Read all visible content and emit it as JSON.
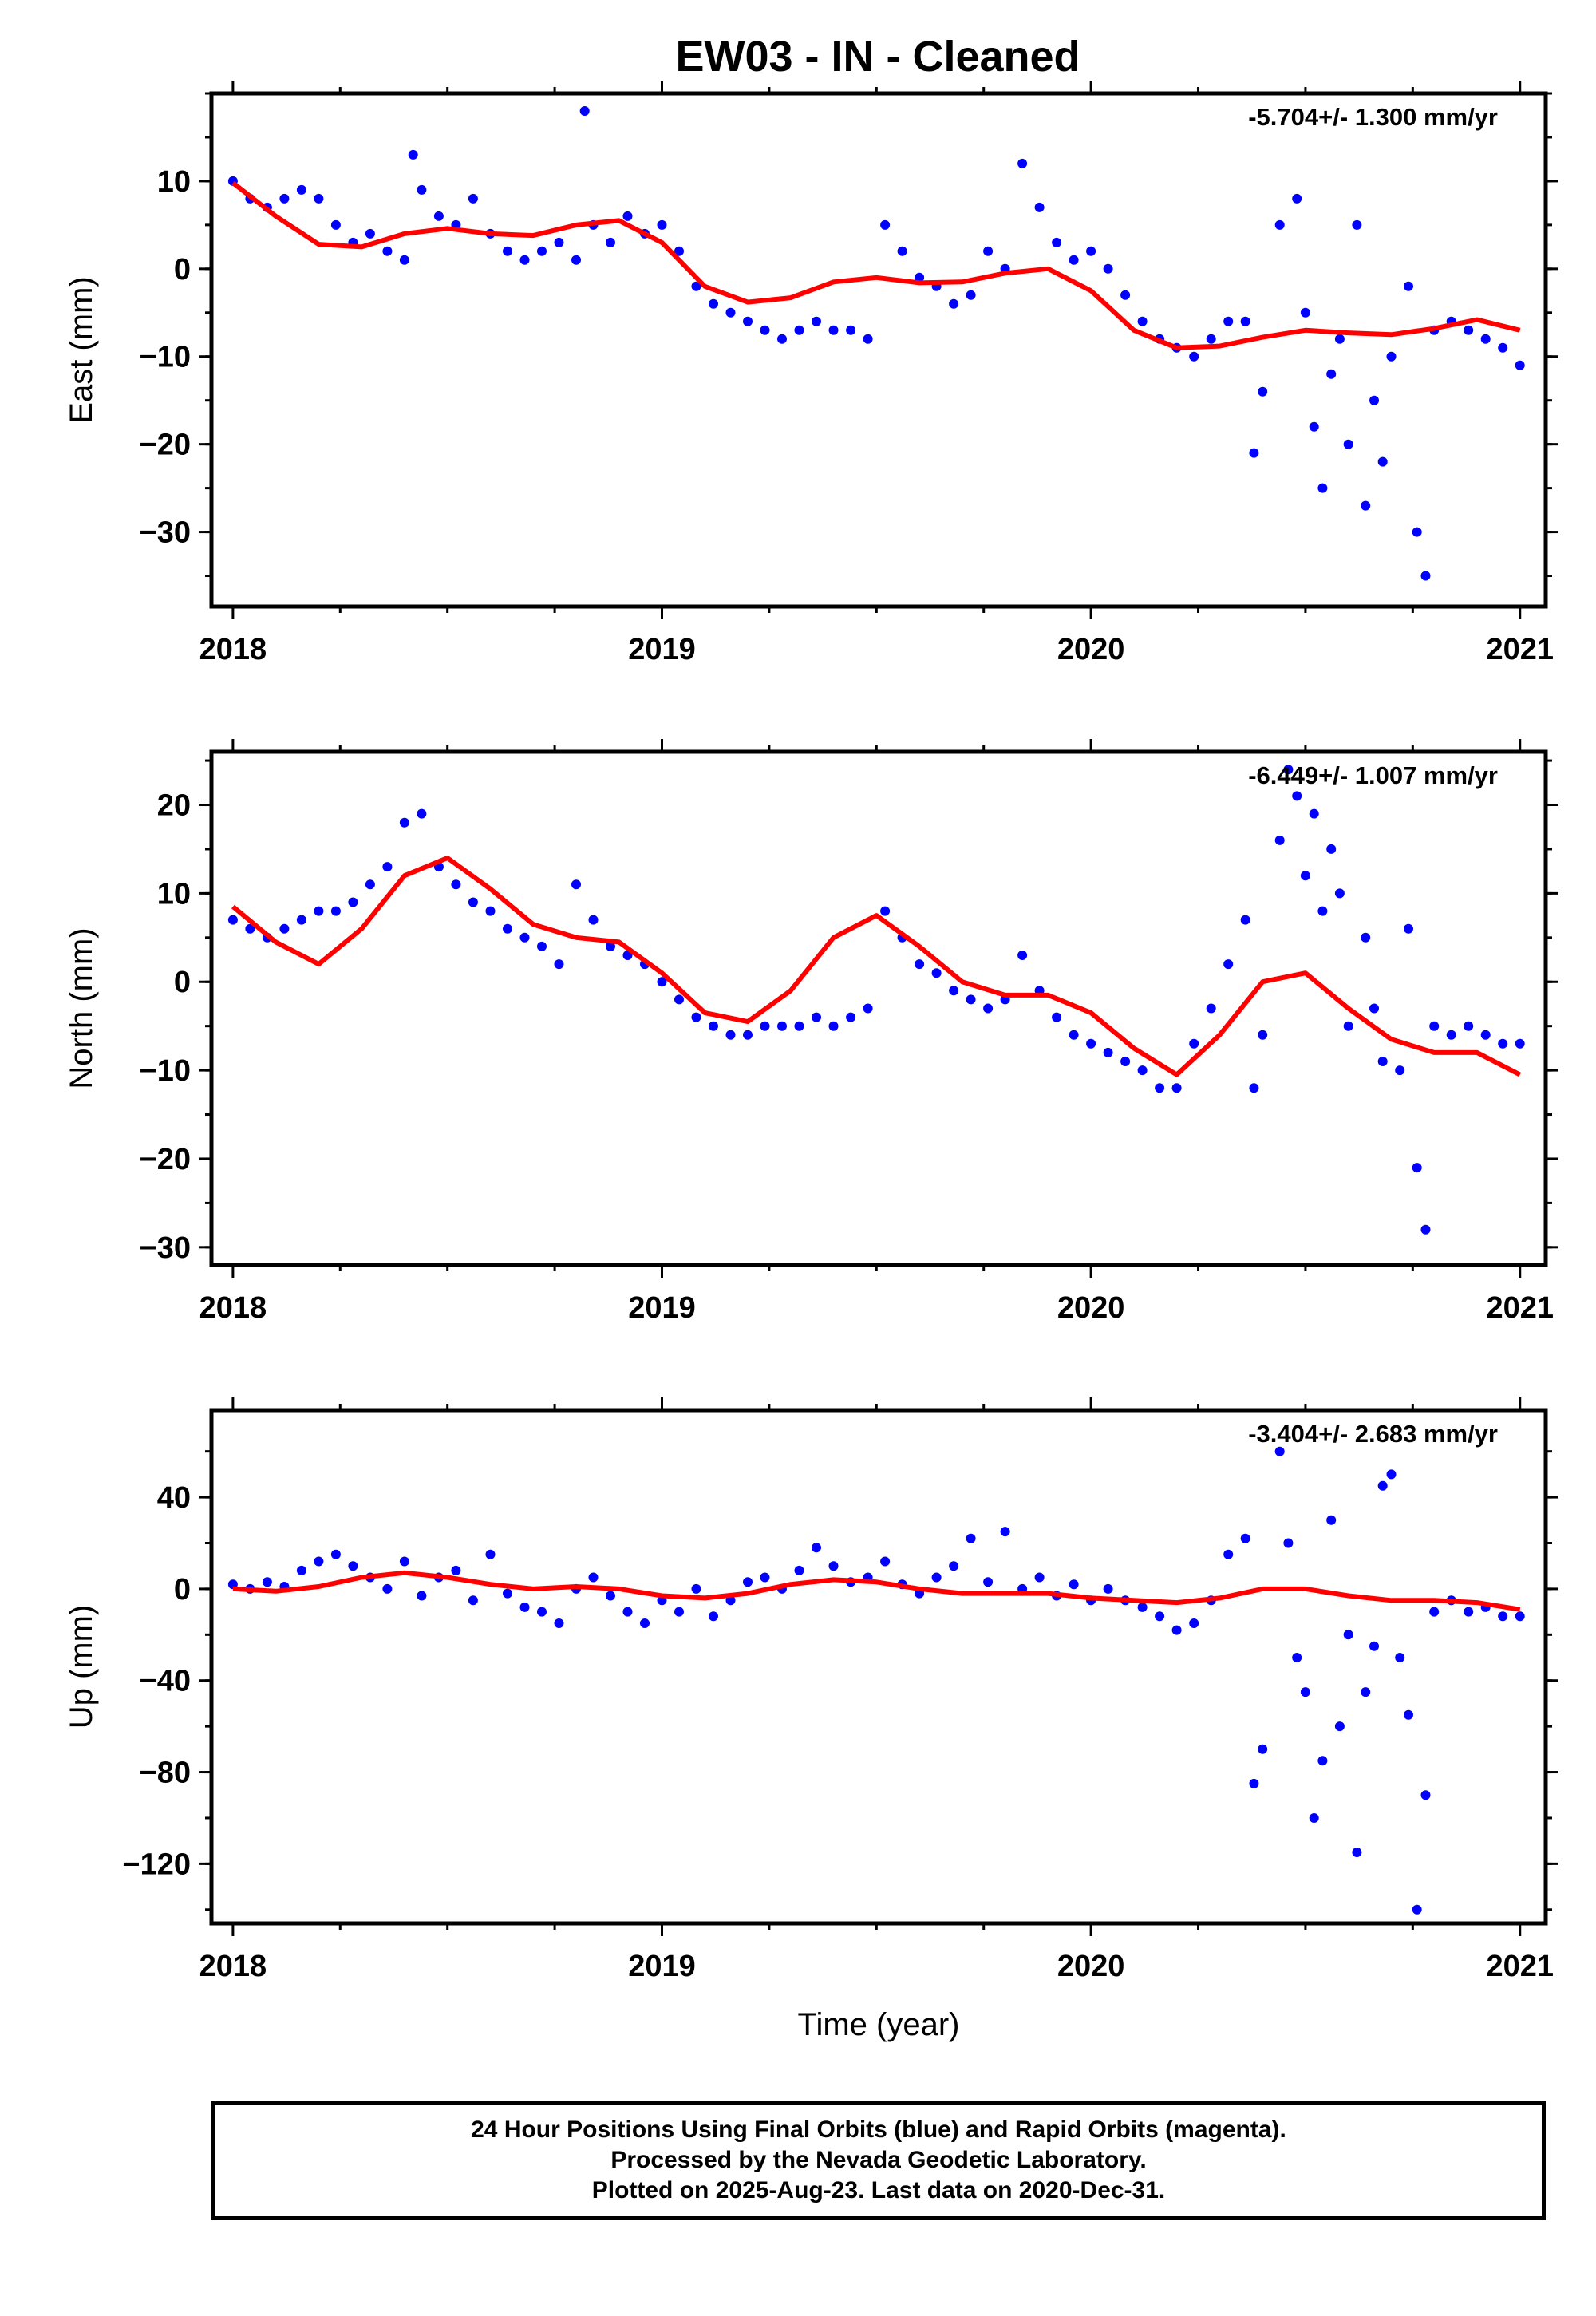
{
  "page": {
    "title": "EW03  - IN - Cleaned",
    "footer_lines": [
      "24 Hour Positions Using Final Orbits (blue) and Rapid Orbits (magenta).",
      "Processed by the Nevada Geodetic Laboratory.",
      "Plotted on 2025-Aug-23. Last data on 2020-Dec-31."
    ]
  },
  "colors": {
    "data_points": "#0000ff",
    "model_curve": "#ff0000",
    "frame": "#000000"
  },
  "chart_data": [
    {
      "type": "scatter",
      "panel": "east",
      "ylabel": "East (mm)",
      "xlabel": "",
      "rate_annotation": "-5.704+/- 1.300 mm/yr",
      "xlim": [
        2017.95,
        2021.06
      ],
      "ylim": [
        -38.5,
        20
      ],
      "xticks": [
        2018,
        2019,
        2020,
        2021
      ],
      "xtick_labels": [
        "2018",
        "2019",
        "2020",
        "2021"
      ],
      "yticks": [
        -30,
        -20,
        -10,
        0,
        10
      ],
      "ytick_labels": [
        "−30",
        "−20",
        "−10",
        "0",
        "10"
      ],
      "model_curve": {
        "name": "",
        "x": [
          2018.0,
          2018.1,
          2018.2,
          2018.3,
          2018.4,
          2018.5,
          2018.6,
          2018.7,
          2018.8,
          2018.9,
          2019.0,
          2019.1,
          2019.2,
          2019.3,
          2019.4,
          2019.5,
          2019.6,
          2019.7,
          2019.8,
          2019.9,
          2020.0,
          2020.1,
          2020.2,
          2020.3,
          2020.4,
          2020.5,
          2020.6,
          2020.7,
          2020.8,
          2020.9,
          2021.0
        ],
        "y": [
          9.8,
          6.0,
          2.8,
          2.5,
          4.0,
          4.6,
          4.0,
          3.8,
          5.0,
          5.5,
          3.0,
          -2.0,
          -3.8,
          -3.3,
          -1.5,
          -1.0,
          -1.6,
          -1.5,
          -0.5,
          0.0,
          -2.5,
          -7.0,
          -9.0,
          -8.8,
          -7.8,
          -7.0,
          -7.3,
          -7.5,
          -6.8,
          -5.8,
          -7.0
        ]
      },
      "scatter": {
        "name": "",
        "x": [
          2018.0,
          2018.04,
          2018.08,
          2018.12,
          2018.16,
          2018.2,
          2018.24,
          2018.28,
          2018.32,
          2018.36,
          2018.4,
          2018.42,
          2018.44,
          2018.48,
          2018.52,
          2018.56,
          2018.6,
          2018.64,
          2018.68,
          2018.72,
          2018.76,
          2018.8,
          2018.82,
          2018.84,
          2018.88,
          2018.92,
          2018.96,
          2019.0,
          2019.04,
          2019.08,
          2019.12,
          2019.16,
          2019.2,
          2019.24,
          2019.28,
          2019.32,
          2019.36,
          2019.4,
          2019.44,
          2019.48,
          2019.52,
          2019.56,
          2019.6,
          2019.64,
          2019.68,
          2019.72,
          2019.76,
          2019.8,
          2019.84,
          2019.88,
          2019.92,
          2019.96,
          2020.0,
          2020.04,
          2020.08,
          2020.12,
          2020.16,
          2020.2,
          2020.24,
          2020.28,
          2020.32,
          2020.36,
          2020.38,
          2020.4,
          2020.44,
          2020.48,
          2020.5,
          2020.52,
          2020.54,
          2020.56,
          2020.58,
          2020.6,
          2020.62,
          2020.64,
          2020.66,
          2020.68,
          2020.7,
          2020.74,
          2020.76,
          2020.78,
          2020.8,
          2020.84,
          2020.88,
          2020.92,
          2020.96,
          2021.0
        ],
        "y": [
          10,
          8,
          7,
          8,
          9,
          8,
          5,
          3,
          4,
          2,
          1,
          13,
          9,
          6,
          5,
          8,
          4,
          2,
          1,
          2,
          3,
          1,
          18,
          5,
          3,
          6,
          4,
          5,
          2,
          -2,
          -4,
          -5,
          -6,
          -7,
          -8,
          -7,
          -6,
          -7,
          -7,
          -8,
          5,
          2,
          -1,
          -2,
          -4,
          -3,
          2,
          0,
          12,
          7,
          3,
          1,
          2,
          0,
          -3,
          -6,
          -8,
          -9,
          -10,
          -8,
          -6,
          -6,
          -21,
          -14,
          5,
          8,
          -5,
          -18,
          -25,
          -12,
          -8,
          -20,
          5,
          -27,
          -15,
          -22,
          -10,
          -2,
          -30,
          -35,
          -7,
          -6,
          -7,
          -8,
          -9,
          -11
        ]
      }
    },
    {
      "type": "scatter",
      "panel": "north",
      "ylabel": "North (mm)",
      "xlabel": "",
      "rate_annotation": "-6.449+/- 1.007 mm/yr",
      "xlim": [
        2017.95,
        2021.06
      ],
      "ylim": [
        -32,
        26
      ],
      "xticks": [
        2018,
        2019,
        2020,
        2021
      ],
      "xtick_labels": [
        "2018",
        "2019",
        "2020",
        "2021"
      ],
      "yticks": [
        -30,
        -20,
        -10,
        0,
        10,
        20
      ],
      "ytick_labels": [
        "−30",
        "−20",
        "−10",
        "0",
        "10",
        "20"
      ],
      "model_curve": {
        "name": "",
        "x": [
          2018.0,
          2018.1,
          2018.2,
          2018.3,
          2018.4,
          2018.5,
          2018.6,
          2018.7,
          2018.8,
          2018.9,
          2019.0,
          2019.1,
          2019.2,
          2019.3,
          2019.4,
          2019.5,
          2019.6,
          2019.7,
          2019.8,
          2019.9,
          2020.0,
          2020.1,
          2020.2,
          2020.3,
          2020.4,
          2020.5,
          2020.6,
          2020.7,
          2020.8,
          2020.9,
          2021.0
        ],
        "y": [
          8.5,
          4.5,
          2.0,
          6.0,
          12.0,
          14.0,
          10.5,
          6.5,
          5.0,
          4.5,
          1.0,
          -3.5,
          -4.5,
          -1.0,
          5.0,
          7.5,
          4.0,
          0.0,
          -1.5,
          -1.5,
          -3.5,
          -7.5,
          -10.5,
          -6.0,
          0.0,
          1.0,
          -3.0,
          -6.5,
          -8.0,
          -8.0,
          -10.5
        ]
      },
      "scatter": {
        "name": "",
        "x": [
          2018.0,
          2018.04,
          2018.08,
          2018.12,
          2018.16,
          2018.2,
          2018.24,
          2018.28,
          2018.32,
          2018.36,
          2018.4,
          2018.44,
          2018.48,
          2018.52,
          2018.56,
          2018.6,
          2018.64,
          2018.68,
          2018.72,
          2018.76,
          2018.8,
          2018.84,
          2018.88,
          2018.92,
          2018.96,
          2019.0,
          2019.04,
          2019.08,
          2019.12,
          2019.16,
          2019.2,
          2019.24,
          2019.28,
          2019.32,
          2019.36,
          2019.4,
          2019.44,
          2019.48,
          2019.52,
          2019.56,
          2019.6,
          2019.64,
          2019.68,
          2019.72,
          2019.76,
          2019.8,
          2019.84,
          2019.88,
          2019.92,
          2019.96,
          2020.0,
          2020.04,
          2020.08,
          2020.12,
          2020.16,
          2020.2,
          2020.24,
          2020.28,
          2020.32,
          2020.36,
          2020.38,
          2020.4,
          2020.44,
          2020.46,
          2020.48,
          2020.5,
          2020.52,
          2020.54,
          2020.56,
          2020.58,
          2020.6,
          2020.64,
          2020.66,
          2020.68,
          2020.72,
          2020.74,
          2020.76,
          2020.78,
          2020.8,
          2020.84,
          2020.88,
          2020.92,
          2020.96,
          2021.0
        ],
        "y": [
          7,
          6,
          5,
          6,
          7,
          8,
          8,
          9,
          11,
          13,
          18,
          19,
          13,
          11,
          9,
          8,
          6,
          5,
          4,
          2,
          11,
          7,
          4,
          3,
          2,
          0,
          -2,
          -4,
          -5,
          -6,
          -6,
          -5,
          -5,
          -5,
          -4,
          -5,
          -4,
          -3,
          8,
          5,
          2,
          1,
          -1,
          -2,
          -3,
          -2,
          3,
          -1,
          -4,
          -6,
          -7,
          -8,
          -9,
          -10,
          -12,
          -12,
          -7,
          -3,
          2,
          7,
          -12,
          -6,
          16,
          24,
          21,
          12,
          19,
          8,
          15,
          10,
          -5,
          5,
          -3,
          -9,
          -10,
          6,
          -21,
          -28,
          -5,
          -6,
          -5,
          -6,
          -7,
          -7
        ]
      }
    },
    {
      "type": "scatter",
      "panel": "up",
      "ylabel": "Up (mm)",
      "xlabel": "Time (year)",
      "rate_annotation": "-3.404+/- 2.683 mm/yr",
      "xlim": [
        2017.95,
        2021.06
      ],
      "ylim": [
        -146,
        78
      ],
      "xticks": [
        2018,
        2019,
        2020,
        2021
      ],
      "xtick_labels": [
        "2018",
        "2019",
        "2020",
        "2021"
      ],
      "yticks": [
        -120,
        -80,
        -40,
        0,
        40
      ],
      "ytick_labels": [
        "−120",
        "−80",
        "−40",
        "0",
        "40"
      ],
      "model_curve": {
        "name": "",
        "x": [
          2018.0,
          2018.1,
          2018.2,
          2018.3,
          2018.4,
          2018.5,
          2018.6,
          2018.7,
          2018.8,
          2018.9,
          2019.0,
          2019.1,
          2019.2,
          2019.3,
          2019.4,
          2019.5,
          2019.6,
          2019.7,
          2019.8,
          2019.9,
          2020.0,
          2020.1,
          2020.2,
          2020.3,
          2020.4,
          2020.5,
          2020.6,
          2020.7,
          2020.8,
          2020.9,
          2021.0
        ],
        "y": [
          0,
          -1,
          1,
          5,
          7,
          5,
          2,
          0,
          1,
          0,
          -3,
          -4,
          -2,
          2,
          4,
          3,
          0,
          -2,
          -2,
          -2,
          -4,
          -5,
          -6,
          -4,
          0,
          0,
          -3,
          -5,
          -5,
          -6,
          -9
        ]
      },
      "scatter": {
        "name": "",
        "x": [
          2018.0,
          2018.04,
          2018.08,
          2018.12,
          2018.16,
          2018.2,
          2018.24,
          2018.28,
          2018.32,
          2018.36,
          2018.4,
          2018.44,
          2018.48,
          2018.52,
          2018.56,
          2018.6,
          2018.64,
          2018.68,
          2018.72,
          2018.76,
          2018.8,
          2018.84,
          2018.88,
          2018.92,
          2018.96,
          2019.0,
          2019.04,
          2019.08,
          2019.12,
          2019.16,
          2019.2,
          2019.24,
          2019.28,
          2019.32,
          2019.36,
          2019.4,
          2019.44,
          2019.48,
          2019.52,
          2019.56,
          2019.6,
          2019.64,
          2019.68,
          2019.72,
          2019.76,
          2019.8,
          2019.84,
          2019.88,
          2019.92,
          2019.96,
          2020.0,
          2020.04,
          2020.08,
          2020.12,
          2020.16,
          2020.2,
          2020.24,
          2020.28,
          2020.32,
          2020.36,
          2020.38,
          2020.4,
          2020.44,
          2020.46,
          2020.48,
          2020.5,
          2020.52,
          2020.54,
          2020.56,
          2020.58,
          2020.6,
          2020.62,
          2020.64,
          2020.66,
          2020.68,
          2020.7,
          2020.72,
          2020.74,
          2020.76,
          2020.78,
          2020.8,
          2020.84,
          2020.88,
          2020.92,
          2020.96,
          2021.0
        ],
        "y": [
          2,
          0,
          3,
          1,
          8,
          12,
          15,
          10,
          5,
          0,
          12,
          -3,
          5,
          8,
          -5,
          15,
          -2,
          -8,
          -10,
          -15,
          0,
          5,
          -3,
          -10,
          -15,
          -5,
          -10,
          0,
          -12,
          -5,
          3,
          5,
          0,
          8,
          18,
          10,
          3,
          5,
          12,
          2,
          -2,
          5,
          10,
          22,
          3,
          25,
          0,
          5,
          -3,
          2,
          -5,
          0,
          -5,
          -8,
          -12,
          -18,
          -15,
          -5,
          15,
          22,
          -85,
          -70,
          60,
          20,
          -30,
          -45,
          -100,
          -75,
          30,
          -60,
          -20,
          -115,
          -45,
          -25,
          45,
          50,
          -30,
          -55,
          -140,
          -90,
          -10,
          -5,
          -10,
          -8,
          -12,
          -12
        ]
      }
    }
  ]
}
